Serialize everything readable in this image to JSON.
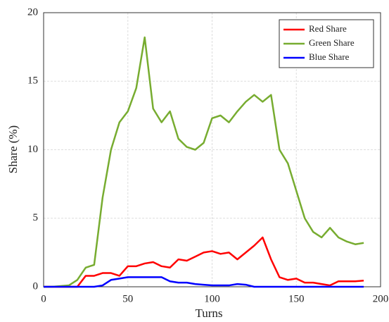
{
  "chart_data": {
    "type": "line",
    "xlabel": "Turns",
    "ylabel": "Share (%)",
    "x": [
      0,
      5,
      10,
      15,
      20,
      25,
      30,
      35,
      40,
      45,
      50,
      55,
      60,
      65,
      70,
      75,
      80,
      85,
      90,
      95,
      100,
      105,
      110,
      115,
      120,
      125,
      130,
      135,
      140,
      145,
      150,
      155,
      160,
      165,
      170,
      175,
      180,
      185,
      190
    ],
    "series": [
      {
        "name": "Red Share",
        "color": "#ff0000",
        "values": [
          0,
          0,
          0,
          0,
          0,
          0.8,
          0.8,
          1,
          1,
          0.8,
          1.5,
          1.5,
          1.7,
          1.8,
          1.5,
          1.4,
          2,
          1.9,
          2.2,
          2.5,
          2.6,
          2.4,
          2.5,
          2,
          2.5,
          3,
          3.6,
          2,
          0.7,
          0.5,
          0.6,
          0.3,
          0.3,
          0.2,
          0.1,
          0.4,
          0.4,
          0.4,
          0.45
        ]
      },
      {
        "name": "Green Share",
        "color": "#77ac30",
        "values": [
          0,
          0,
          0.05,
          0.1,
          0.5,
          1.4,
          1.6,
          6.5,
          10,
          12,
          12.8,
          14.5,
          18.2,
          13,
          12,
          12.8,
          10.8,
          10.2,
          10,
          10.5,
          12.3,
          12.5,
          12,
          12.8,
          13.5,
          14,
          13.5,
          14,
          10,
          9,
          7,
          5,
          4,
          3.6,
          4.3,
          3.6,
          3.3,
          3.1,
          3.2
        ]
      },
      {
        "name": "Blue Share",
        "color": "#0000ff",
        "values": [
          0,
          0,
          0,
          0,
          0,
          0,
          0,
          0.1,
          0.5,
          0.6,
          0.7,
          0.7,
          0.7,
          0.7,
          0.7,
          0.4,
          0.3,
          0.3,
          0.2,
          0.15,
          0.1,
          0.1,
          0.1,
          0.2,
          0.15,
          0,
          0,
          0,
          0,
          0,
          0,
          0,
          0,
          0,
          0,
          0,
          0,
          0,
          0
        ]
      }
    ],
    "xlim": [
      0,
      200
    ],
    "xticks": [
      0,
      50,
      100,
      150,
      200
    ],
    "ylim": [
      0,
      20
    ],
    "yticks": [
      0,
      5,
      10,
      15,
      20
    ],
    "grid": true,
    "legend": "upper right"
  }
}
